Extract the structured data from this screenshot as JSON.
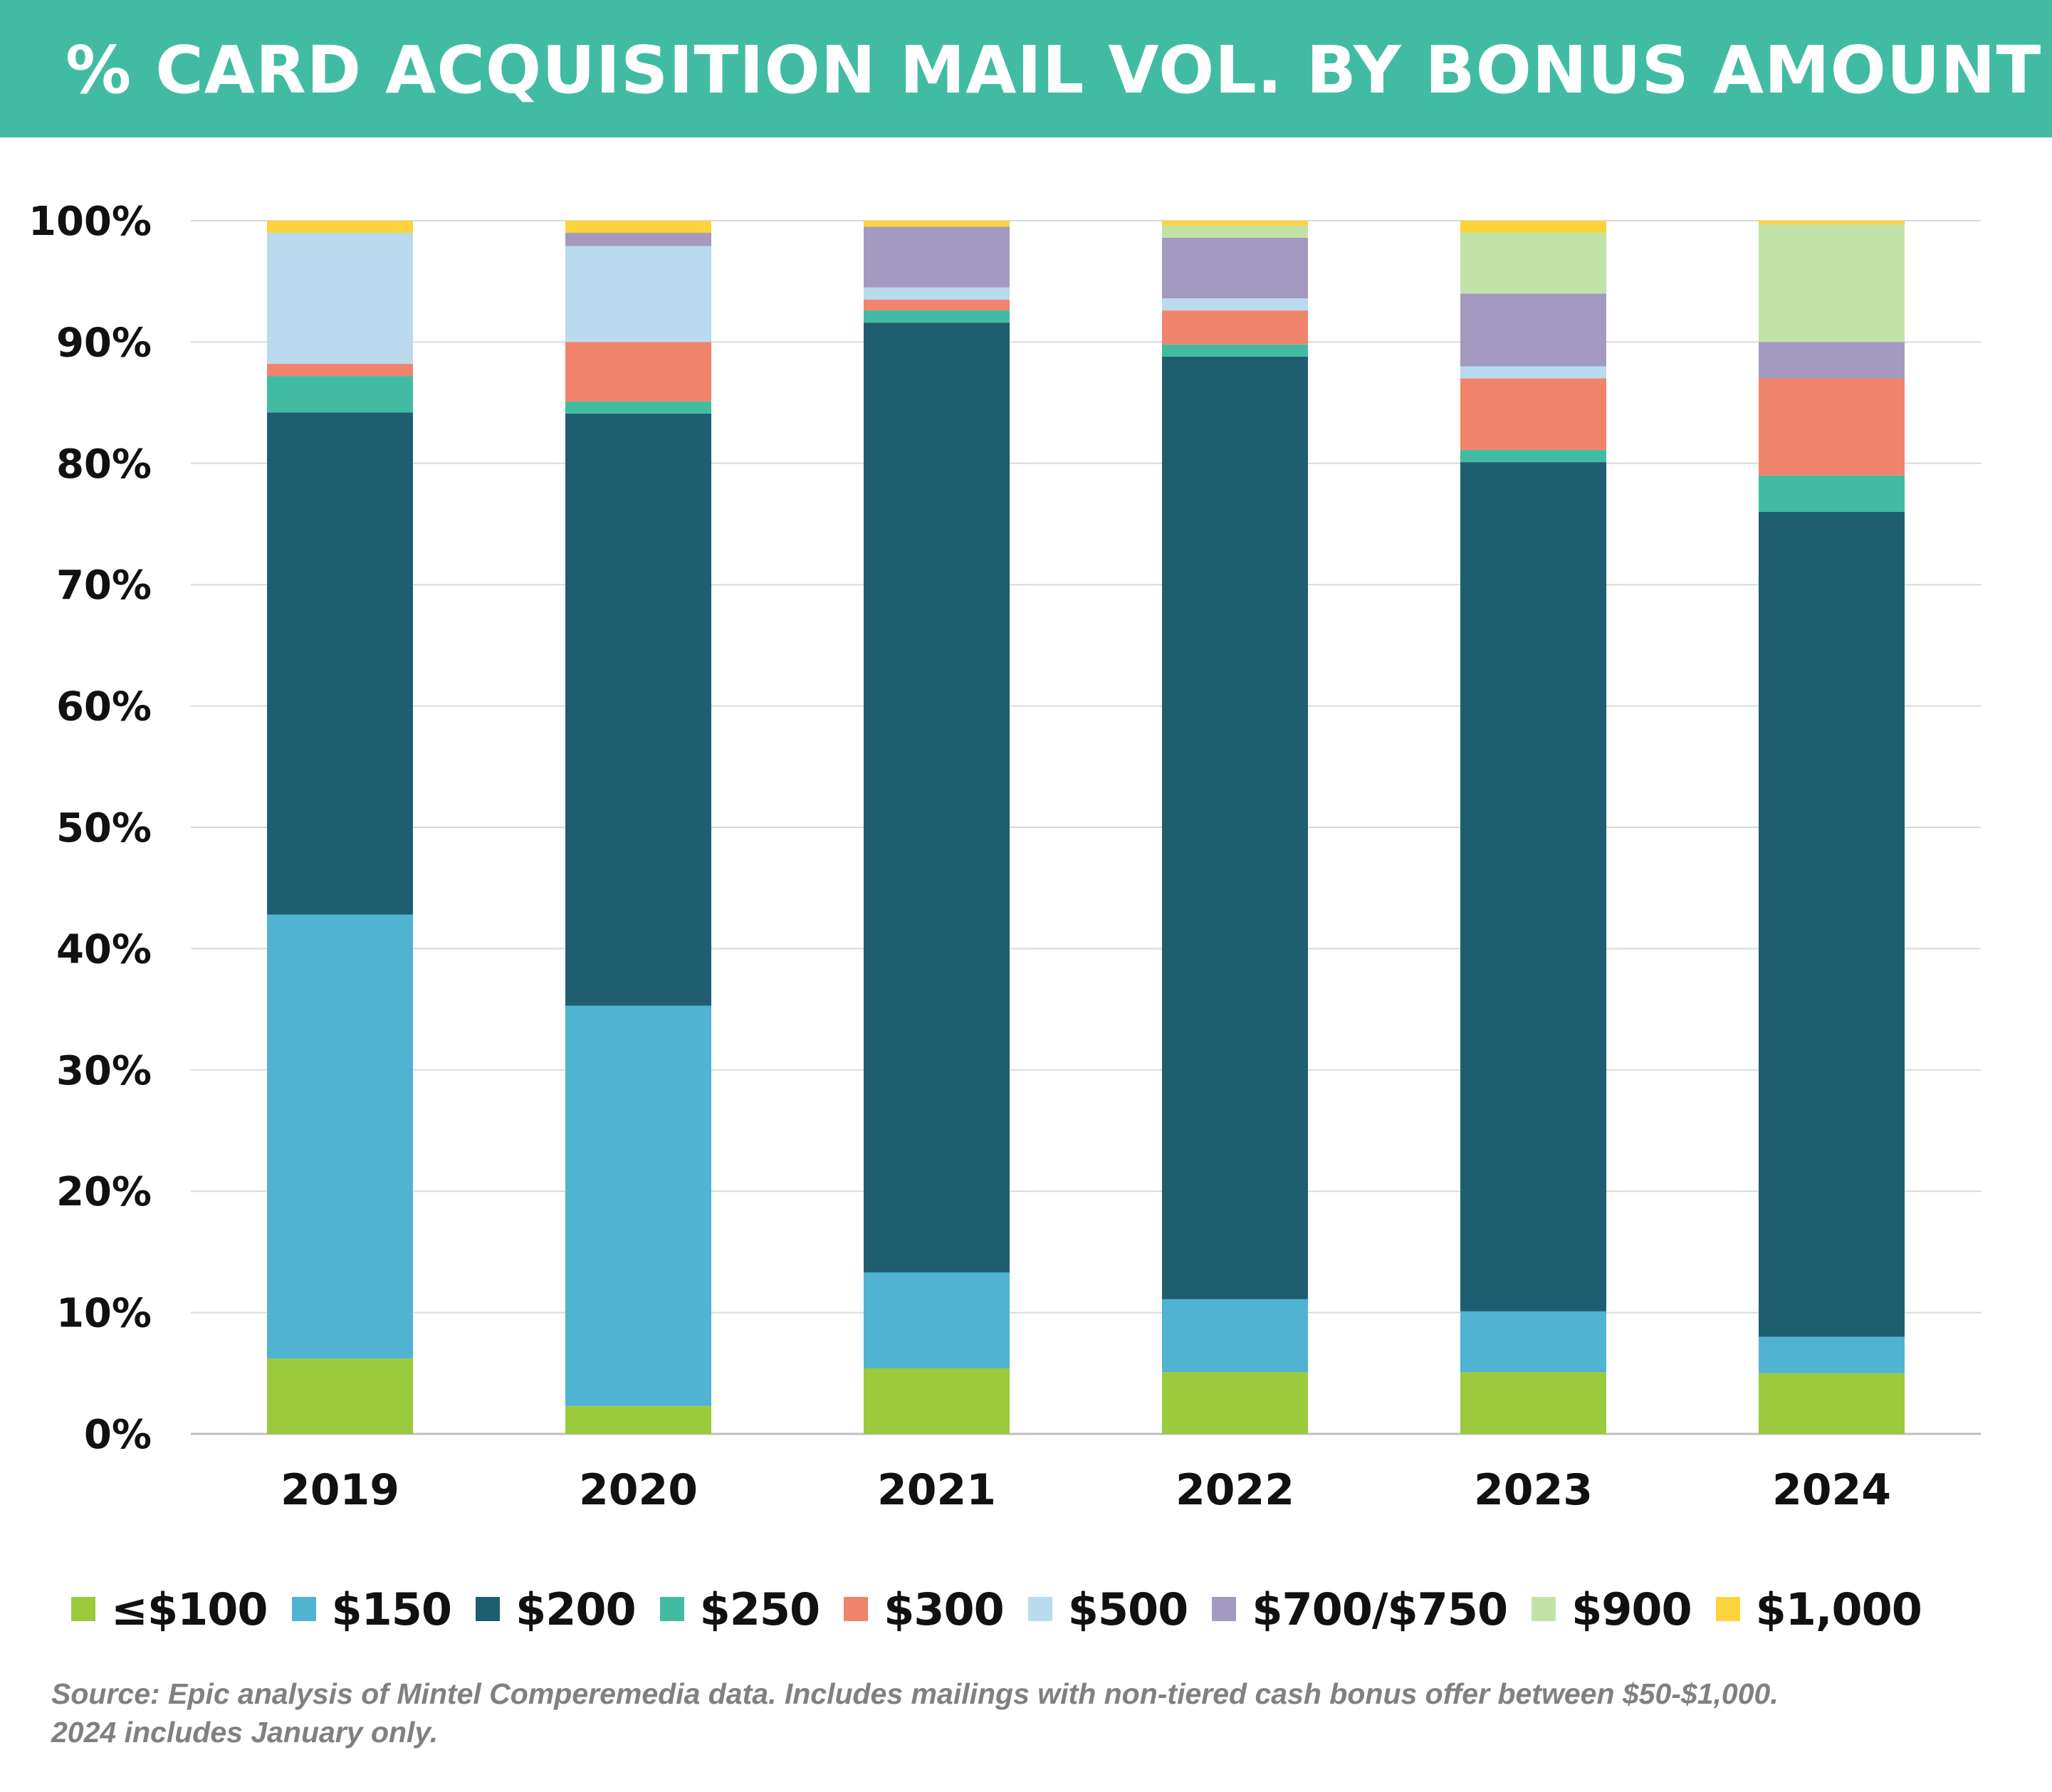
{
  "header": {
    "title": "% CARD ACQUISITION MAIL VOL. BY BONUS AMOUNT"
  },
  "chart_data": {
    "type": "bar",
    "stacked": true,
    "title": "% CARD ACQUISITION MAIL VOL. BY BONUS AMOUNT",
    "categories": [
      "2019",
      "2020",
      "2021",
      "2022",
      "2023",
      "2024"
    ],
    "ylim": [
      0,
      100
    ],
    "yticks": [
      "0%",
      "10%",
      "20%",
      "30%",
      "40%",
      "50%",
      "60%",
      "70%",
      "80%",
      "90%",
      "100%"
    ],
    "grid": true,
    "legend_position": "bottom",
    "series": [
      {
        "name": "≤$100",
        "color": "#9bca3c",
        "values": [
          6.2,
          2.3,
          5.4,
          5.1,
          5.1,
          5.0
        ]
      },
      {
        "name": "$150",
        "color": "#4fb3d1",
        "values": [
          36.6,
          33.0,
          7.9,
          6.0,
          5.0,
          3.0
        ]
      },
      {
        "name": "$200",
        "color": "#1f5e70",
        "values": [
          41.4,
          48.8,
          78.3,
          77.7,
          70.0,
          68.0
        ]
      },
      {
        "name": "$250",
        "color": "#41bca2",
        "values": [
          3.0,
          1.0,
          1.0,
          1.0,
          1.0,
          3.0
        ]
      },
      {
        "name": "$300",
        "color": "#f0836b",
        "values": [
          1.0,
          4.9,
          0.9,
          2.8,
          5.9,
          8.0
        ]
      },
      {
        "name": "$500",
        "color": "#badaed",
        "values": [
          10.8,
          7.9,
          1.0,
          1.0,
          1.0,
          0.0
        ]
      },
      {
        "name": "$700/$750",
        "color": "#a499bf",
        "values": [
          0.0,
          1.1,
          5.0,
          5.0,
          6.0,
          3.0
        ]
      },
      {
        "name": "$900",
        "color": "#c2e3a8",
        "values": [
          0.0,
          0.0,
          0.0,
          1.0,
          5.0,
          9.7
        ]
      },
      {
        "name": "$1,000",
        "color": "#fcd33c",
        "values": [
          1.0,
          1.0,
          0.5,
          0.4,
          1.0,
          0.3
        ]
      }
    ]
  },
  "source": {
    "line1": "Source: Epic analysis of Mintel Comperemedia data. Includes mailings with non-tiered cash bonus offer between $50-$1,000.",
    "line2": "2024 includes January only."
  }
}
